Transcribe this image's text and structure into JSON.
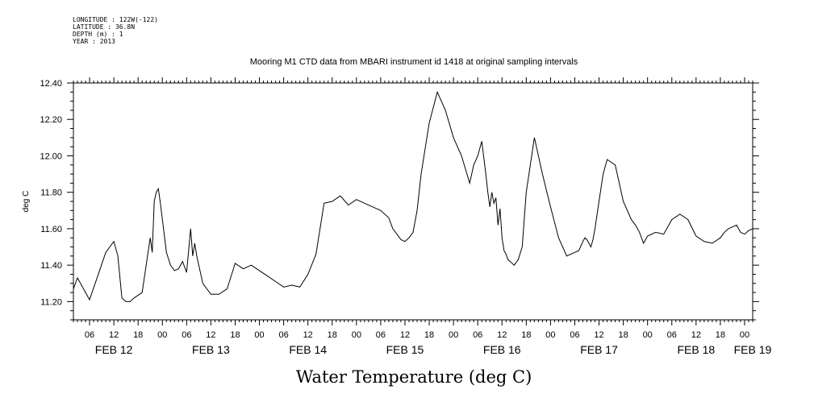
{
  "metadata": {
    "longitude": "LONGITUDE : 122W(-122)",
    "latitude": "LATITUDE : 36.8N",
    "depth": "DEPTH (m) : 1",
    "year": "YEAR : 2013"
  },
  "chart_data": {
    "type": "line",
    "title": "Mooring M1 CTD data from MBARI instrument id 1418 at original sampling intervals",
    "xlabel": "Water Temperature (deg C)",
    "ylabel": "deg C",
    "ylim": [
      11.1,
      12.4
    ],
    "yticks": [
      "11.20",
      "11.40",
      "11.60",
      "11.80",
      "12.00",
      "12.20",
      "12.40"
    ],
    "ytick_values": [
      11.2,
      11.4,
      11.6,
      11.8,
      12.0,
      12.2,
      12.4
    ],
    "xlim_hours": [
      2,
      170
    ],
    "hour_ticks": [
      "06",
      "12",
      "18",
      "00",
      "06",
      "12",
      "18",
      "00",
      "06",
      "12",
      "18",
      "00",
      "06",
      "12",
      "18",
      "00",
      "06",
      "12",
      "18",
      "00",
      "06",
      "12",
      "18",
      "00",
      "06",
      "12",
      "18",
      "00"
    ],
    "day_labels": [
      "FEB 12",
      "FEB 13",
      "FEB 14",
      "FEB 15",
      "FEB 16",
      "FEB 17",
      "FEB 18",
      "FEB 19"
    ],
    "series": [
      {
        "x": [
          2,
          3,
          4,
          6,
          8,
          10,
          11,
          12,
          13,
          14,
          15,
          16,
          17,
          19,
          20,
          21,
          21.5,
          22,
          22.5,
          23,
          23.5,
          24,
          25,
          26,
          27,
          28,
          29,
          30,
          31,
          31.5,
          32,
          32.5,
          33,
          34,
          36,
          38,
          40,
          42,
          44,
          46,
          48,
          50,
          52,
          54,
          56,
          58,
          60,
          62,
          64,
          66,
          68,
          70,
          72,
          74,
          76,
          78,
          80,
          81,
          82,
          83,
          84,
          85,
          86,
          87,
          88,
          90,
          92,
          94,
          96,
          98,
          100,
          101,
          102,
          103,
          104,
          104.5,
          105,
          105.5,
          106,
          106.5,
          107,
          107.5,
          108,
          108.5,
          109,
          109.5,
          110,
          111,
          112,
          113,
          114,
          116,
          118,
          120,
          122,
          124,
          126,
          127,
          128,
          128.5,
          129,
          129.5,
          130,
          130.5,
          131,
          132,
          133,
          134,
          136,
          138,
          140,
          141,
          142,
          143,
          144,
          146,
          148,
          150,
          152,
          154,
          156,
          158,
          160,
          162,
          163,
          164,
          165,
          166,
          167,
          168,
          169,
          170
        ],
        "y": [
          11.27,
          11.33,
          11.29,
          11.21,
          11.34,
          11.47,
          11.5,
          11.53,
          11.45,
          11.22,
          11.2,
          11.2,
          11.22,
          11.25,
          11.4,
          11.55,
          11.47,
          11.75,
          11.8,
          11.82,
          11.74,
          11.65,
          11.47,
          11.4,
          11.37,
          11.38,
          11.42,
          11.36,
          11.6,
          11.45,
          11.52,
          11.45,
          11.4,
          11.3,
          11.24,
          11.24,
          11.27,
          11.41,
          11.38,
          11.4,
          11.37,
          11.34,
          11.31,
          11.28,
          11.29,
          11.28,
          11.35,
          11.46,
          11.74,
          11.75,
          11.78,
          11.73,
          11.76,
          11.74,
          11.72,
          11.7,
          11.66,
          11.6,
          11.57,
          11.54,
          11.53,
          11.55,
          11.58,
          11.7,
          11.9,
          12.18,
          12.35,
          12.25,
          12.1,
          12.0,
          11.85,
          11.95,
          12.0,
          12.08,
          11.9,
          11.8,
          11.72,
          11.8,
          11.74,
          11.77,
          11.62,
          11.71,
          11.55,
          11.48,
          11.46,
          11.43,
          11.42,
          11.4,
          11.43,
          11.5,
          11.8,
          12.1,
          11.9,
          11.72,
          11.55,
          11.45,
          11.47,
          11.48,
          11.53,
          11.55,
          11.54,
          11.52,
          11.5,
          11.54,
          11.6,
          11.75,
          11.9,
          11.98,
          11.95,
          11.75,
          11.65,
          11.62,
          11.58,
          11.52,
          11.56,
          11.58,
          11.57,
          11.65,
          11.68,
          11.65,
          11.56,
          11.53,
          11.52,
          11.55,
          11.58,
          11.6,
          11.61,
          11.62,
          11.58,
          11.57,
          11.59,
          11.6
        ]
      }
    ]
  }
}
